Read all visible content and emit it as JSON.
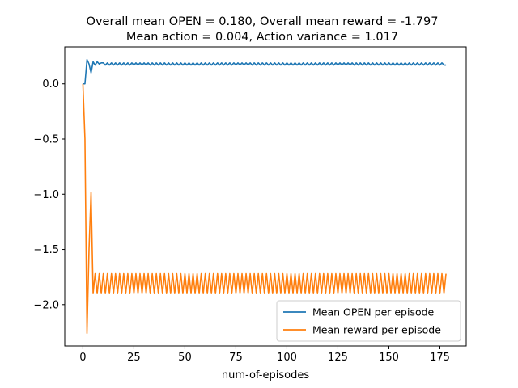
{
  "chart_data": {
    "type": "line",
    "title_lines": [
      "Overall mean OPEN = 0.180, Overall mean reward = -1.797",
      "Mean action = 0.004, Action variance = 1.017"
    ],
    "xlabel": "num-of-episodes",
    "ylabel": "",
    "xlim": [
      -8.9,
      187.9
    ],
    "ylim": [
      -2.375,
      0.335
    ],
    "x_ticks": [
      0,
      25,
      50,
      75,
      100,
      125,
      150,
      175
    ],
    "x_tick_labels": [
      "0",
      "25",
      "50",
      "75",
      "100",
      "125",
      "150",
      "175"
    ],
    "y_ticks": [
      0.0,
      -0.5,
      -1.0,
      -1.5,
      -2.0
    ],
    "y_tick_labels": [
      "0.0",
      "−0.5",
      "−1.0",
      "−1.5",
      "−2.0"
    ],
    "grid": false,
    "legend_position": "lower-right",
    "x_count": 179,
    "series": [
      {
        "name": "Mean OPEN per episode",
        "color": "#1f77b4",
        "initial_values": [
          0.0,
          0.0,
          0.22,
          0.18,
          0.1,
          0.2,
          0.17,
          0.2,
          0.18,
          0.19
        ],
        "alternating_pattern": [
          0.19,
          0.17
        ],
        "last_value": 0.17
      },
      {
        "name": "Mean reward per episode",
        "color": "#ff7f0e",
        "initial_values": [
          0.0,
          -0.5,
          -2.26,
          -1.5,
          -0.98,
          -1.9,
          -1.72,
          -1.9,
          -1.72,
          -1.9
        ],
        "alternating_pattern": [
          -1.72,
          -1.9
        ],
        "last_value": -1.72
      }
    ]
  }
}
